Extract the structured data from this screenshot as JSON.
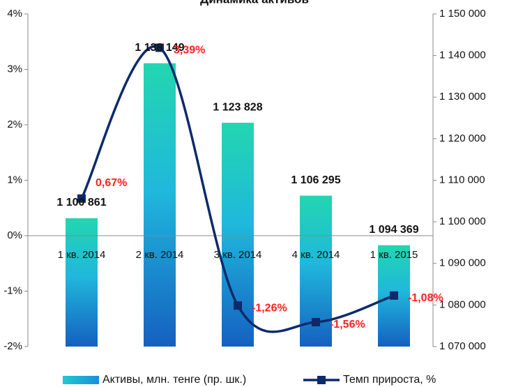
{
  "chart_data": {
    "type": "combo",
    "title": "Динамика активов",
    "categories": [
      "1 кв. 2014",
      "2 кв. 2014",
      "3 кв. 2014",
      "4 кв. 2014",
      "1 кв. 2015"
    ],
    "series": [
      {
        "name": "Активы, млн. тенге (пр. шк.)",
        "type": "bar",
        "axis": "y2",
        "color": "#1fa3c9",
        "values": [
          1100861,
          1138149,
          1123828,
          1106295,
          1094369
        ],
        "value_labels": [
          "1 100 861",
          "1 138 149",
          "1 123 828",
          "1 106 295",
          "1 094 369"
        ]
      },
      {
        "name": "Темп прироста, %",
        "type": "line",
        "color": "#0d2a6b",
        "values": [
          0.67,
          3.39,
          -1.26,
          -1.56,
          -1.08
        ],
        "value_labels": [
          "0,67%",
          "3,39%",
          "-1,26%",
          "-1,56%",
          "-1,08%"
        ],
        "label_color": "#ff2020"
      }
    ],
    "ylim": [
      -2,
      4
    ],
    "yticks": [
      {
        "value": -2,
        "label": "-2%"
      },
      {
        "value": -1,
        "label": "-1%"
      },
      {
        "value": 0,
        "label": "0%"
      },
      {
        "value": 1,
        "label": "1%"
      },
      {
        "value": 2,
        "label": "2%"
      },
      {
        "value": 3,
        "label": "3%"
      },
      {
        "value": 4,
        "label": "4%"
      }
    ],
    "y2lim": [
      1070000,
      1150000
    ],
    "y2ticks": [
      {
        "value": 1070000,
        "label": "1 070 000"
      },
      {
        "value": 1080000,
        "label": "1 080 000"
      },
      {
        "value": 1090000,
        "label": "1 090 000"
      },
      {
        "value": 1100000,
        "label": "1 100 000"
      },
      {
        "value": 1110000,
        "label": "1 110 000"
      },
      {
        "value": 1120000,
        "label": "1 120 000"
      },
      {
        "value": 1130000,
        "label": "1 130 000"
      },
      {
        "value": 1140000,
        "label": "1 140 000"
      },
      {
        "value": 1150000,
        "label": "1 150 000"
      }
    ],
    "legend": "bottom"
  }
}
